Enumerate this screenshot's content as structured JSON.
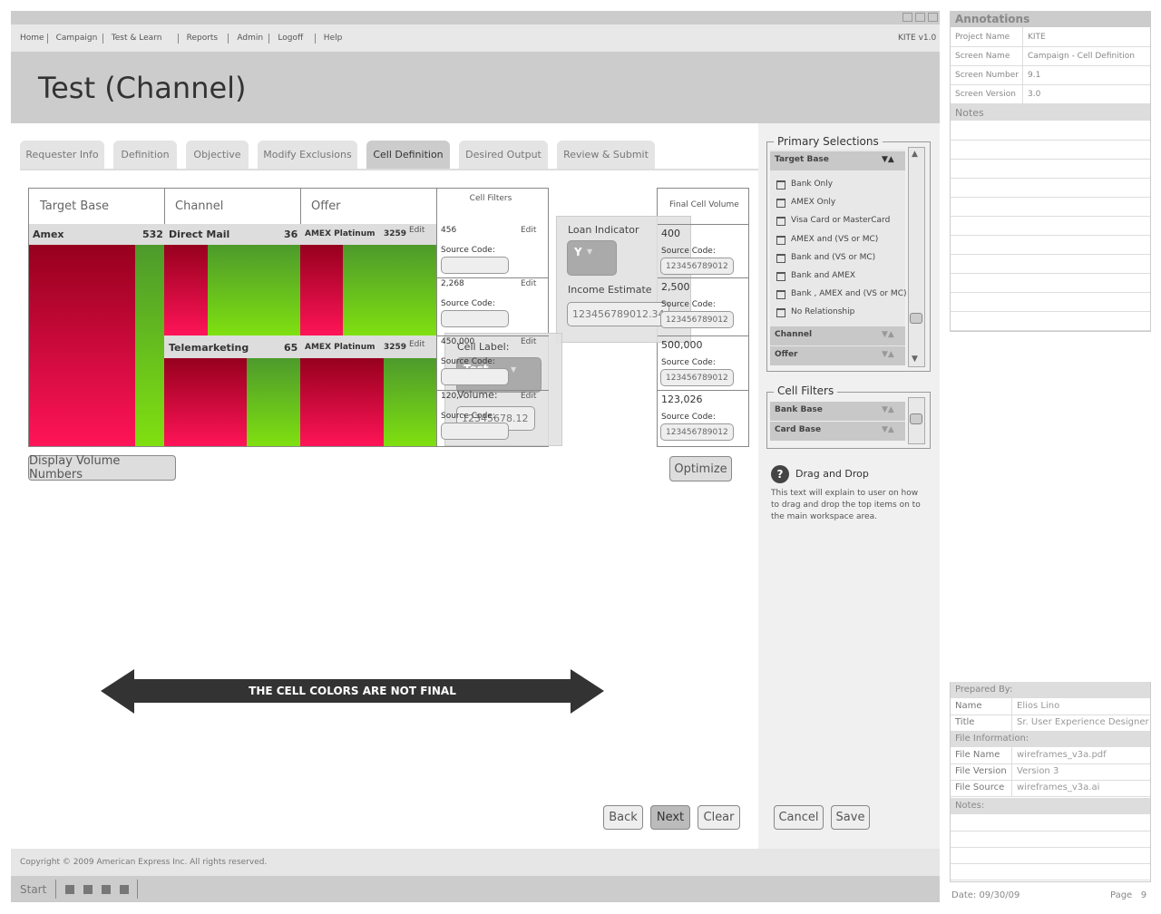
{
  "window": {
    "version": "KITE v1.0"
  },
  "nav": [
    "Home",
    "Campaign",
    "Test & Learn",
    "Reports",
    "Admin",
    "Logoff",
    "Help"
  ],
  "header": {
    "title": "Test (Channel)"
  },
  "tabs": [
    "Requester Info",
    "Definition",
    "Objective",
    "Modify Exclusions",
    "Cell Definition",
    "Desired Output",
    "Review & Submit"
  ],
  "grid": {
    "headers": [
      "Target Base",
      "Channel",
      "Offer",
      "Cell Filters",
      "Final Cell Volume"
    ],
    "edit": "Edit",
    "source_label": "Source Code:",
    "target": {
      "label": "Amex",
      "count": "532"
    },
    "channels": [
      {
        "label": "Direct Mail",
        "count": "36",
        "offer": "AMEX Platinum",
        "offer_count": "3259"
      },
      {
        "label": "Telemarketing",
        "count": "65",
        "offer": "AMEX Platinum",
        "offer_count": "3259"
      }
    ],
    "filters": [
      "456",
      "2,268",
      "450,000",
      "120,"
    ],
    "final": [
      {
        "volume": "400",
        "code": "123456789012"
      },
      {
        "volume": "2,500",
        "code": "123456789012"
      },
      {
        "volume": "500,000",
        "code": "123456789012"
      },
      {
        "volume": "123,026",
        "code": "123456789012"
      }
    ]
  },
  "popup_filter": {
    "label1": "Loan Indicator",
    "value1": "Y",
    "label2": "Income Estimate",
    "value2": "123456789012.34"
  },
  "popup_cell": {
    "label1": "Cell Label:",
    "value1": "Test",
    "label2": "Volume:",
    "value2": "12345678.12"
  },
  "buttons": {
    "display": "Display Volume Numbers",
    "optimize": "Optimize",
    "back": "Back",
    "next": "Next",
    "clear": "Clear",
    "cancel": "Cancel",
    "save": "Save"
  },
  "banner": "THE CELL COLORS ARE NOT FINAL",
  "primary": {
    "title": "Primary Selections",
    "groups": [
      "Target Base",
      "Channel",
      "Offer"
    ],
    "items": [
      "Bank Only",
      "AMEX Only",
      "Visa Card or MasterCard",
      "AMEX and (VS or MC)",
      "Bank and (VS or MC)",
      "Bank and AMEX",
      "Bank , AMEX and (VS or MC)",
      "No Relationship"
    ]
  },
  "cell_filters": {
    "title": "Cell Filters",
    "groups": [
      "Bank Base",
      "Card Base"
    ]
  },
  "help": {
    "title": "Drag and Drop",
    "text": "This text will explain to user on how to drag and drop the top items on to the main workspace area."
  },
  "footer": {
    "copyright": "Copyright © 2009 American Express Inc. All rights reserved.",
    "start": "Start"
  },
  "annotations": {
    "title": "Annotations",
    "rows": [
      [
        "Project Name",
        "KITE"
      ],
      [
        "Screen Name",
        "Campaign - Cell Definition"
      ],
      [
        "Screen Number",
        "9.1"
      ],
      [
        "Screen Version",
        "3.0"
      ]
    ],
    "notes": "Notes"
  },
  "info": {
    "prepared": "Prepared By:",
    "people": [
      [
        "Name",
        "Elios Lino"
      ],
      [
        "Title",
        "Sr. User Experience Designer"
      ]
    ],
    "file_info": "File Information:",
    "files": [
      [
        "File Name",
        "wireframes_v3a.pdf"
      ],
      [
        "File Version",
        "Version 3"
      ],
      [
        "File Source",
        "wireframes_v3a.ai"
      ]
    ],
    "notes": "Notes:",
    "date": "Date: 09/30/09",
    "page": "Page   9"
  }
}
